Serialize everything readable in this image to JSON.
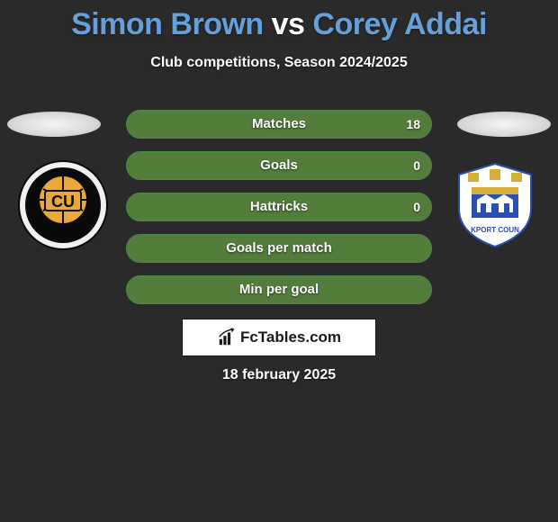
{
  "title": {
    "player1": "Simon Brown",
    "vs": "vs",
    "player2": "Corey Addai",
    "color_p1": "#67a0d8",
    "color_vs": "#ffffff",
    "color_p2": "#67a0d8"
  },
  "subtitle": "Club competitions, Season 2024/2025",
  "clubs": {
    "left": {
      "name": "Cambridge United",
      "badge_bg": "#0a0a0a",
      "badge_accent": "#e8a93a",
      "badge_text": "CU"
    },
    "right": {
      "name": "Stockport County",
      "badge_bg": "#ffffff",
      "badge_accent": "#2a4fb0"
    }
  },
  "stats": {
    "bar_bg": "#666666",
    "fill_color": "#537d3b",
    "border_color": "#4a8a4a",
    "rows": [
      {
        "label": "Matches",
        "left": "",
        "right": "18",
        "left_pct": 0,
        "right_pct": 100
      },
      {
        "label": "Goals",
        "left": "",
        "right": "0",
        "left_pct": 0,
        "right_pct": 100
      },
      {
        "label": "Hattricks",
        "left": "",
        "right": "0",
        "left_pct": 0,
        "right_pct": 100
      },
      {
        "label": "Goals per match",
        "left": "",
        "right": "",
        "left_pct": 50,
        "right_pct": 50
      },
      {
        "label": "Min per goal",
        "left": "",
        "right": "",
        "left_pct": 50,
        "right_pct": 50
      }
    ]
  },
  "brand": {
    "text": "FcTables.com",
    "icon_name": "bar-chart-icon"
  },
  "date": "18 february 2025",
  "colors": {
    "page_bg": "#2a2a2a",
    "text": "#ffffff"
  }
}
